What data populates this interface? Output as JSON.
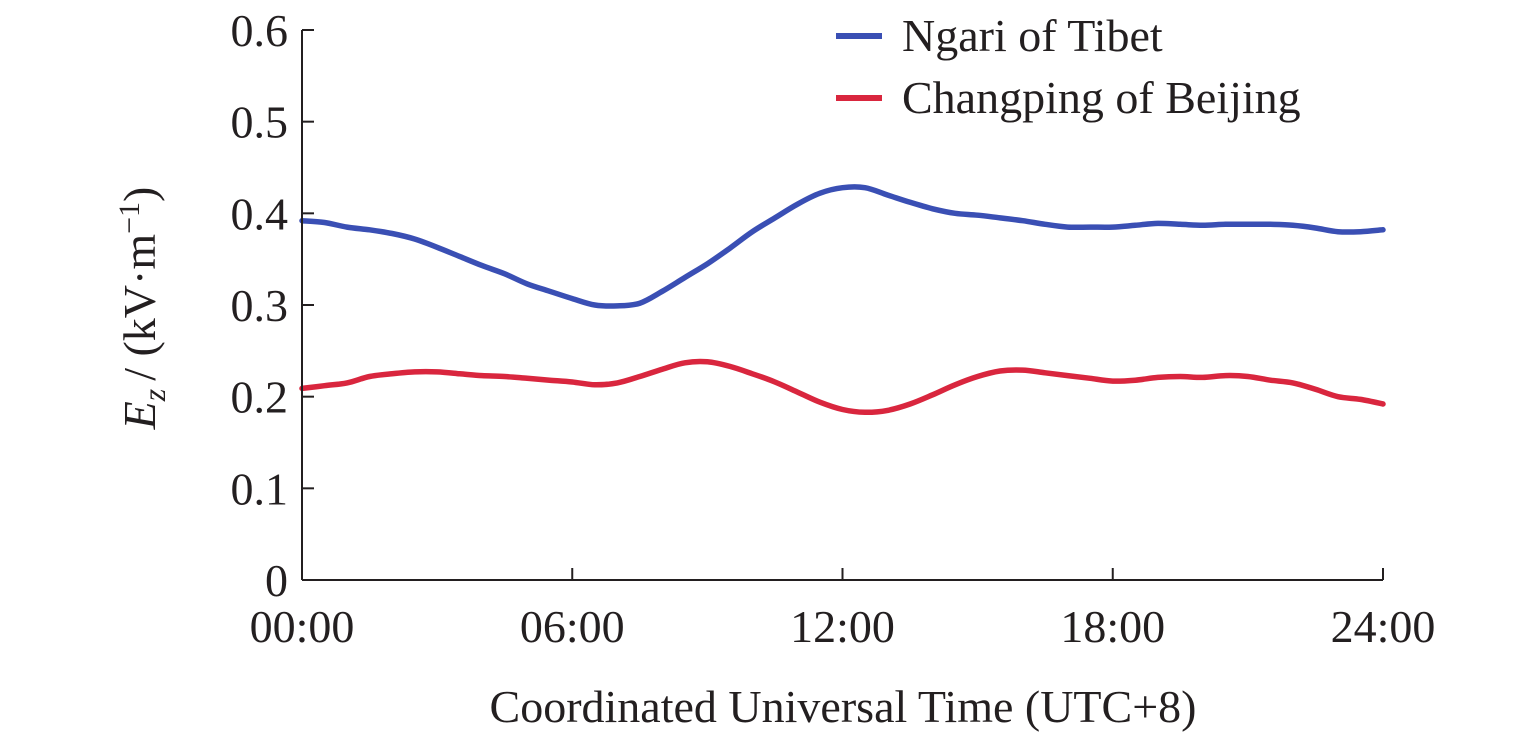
{
  "chart_data": {
    "type": "line",
    "xlabel": "Coordinated Universal Time (UTC+8)",
    "ylabel": {
      "symbol": "E",
      "subscript": "z",
      "unit_prefix": "/ (kV·m",
      "unit_exponent": "−1",
      "unit_suffix": ")"
    },
    "xlim": [
      0,
      24
    ],
    "ylim": [
      0,
      0.6
    ],
    "x_ticks": [
      {
        "value": 0,
        "label": "00:00"
      },
      {
        "value": 6,
        "label": "06:00"
      },
      {
        "value": 12,
        "label": "12:00"
      },
      {
        "value": 18,
        "label": "18:00"
      },
      {
        "value": 24,
        "label": "24:00"
      }
    ],
    "y_ticks": [
      {
        "value": 0,
        "label": "0"
      },
      {
        "value": 0.1,
        "label": "0.1"
      },
      {
        "value": 0.2,
        "label": "0.2"
      },
      {
        "value": 0.3,
        "label": "0.3"
      },
      {
        "value": 0.4,
        "label": "0.4"
      },
      {
        "value": 0.5,
        "label": "0.5"
      },
      {
        "value": 0.6,
        "label": "0.6"
      }
    ],
    "grid": false,
    "legend_position": "top-right",
    "series": [
      {
        "name": "Ngari of Tibet",
        "color": "#3a4fb4",
        "x": [
          0,
          0.5,
          1,
          1.5,
          2,
          2.5,
          3,
          3.5,
          4,
          4.5,
          5,
          5.5,
          6,
          6.5,
          7,
          7.5,
          8,
          8.5,
          9,
          9.5,
          10,
          10.5,
          11,
          11.5,
          12,
          12.5,
          13,
          13.5,
          14,
          14.5,
          15,
          15.5,
          16,
          16.5,
          17,
          17.5,
          18,
          18.5,
          19,
          19.5,
          20,
          20.5,
          21,
          21.5,
          22,
          22.5,
          23,
          23.5,
          24
        ],
        "y": [
          0.392,
          0.39,
          0.385,
          0.382,
          0.378,
          0.372,
          0.363,
          0.353,
          0.343,
          0.334,
          0.323,
          0.315,
          0.307,
          0.3,
          0.299,
          0.302,
          0.315,
          0.33,
          0.345,
          0.362,
          0.38,
          0.395,
          0.41,
          0.422,
          0.428,
          0.428,
          0.42,
          0.412,
          0.405,
          0.4,
          0.398,
          0.395,
          0.392,
          0.388,
          0.385,
          0.385,
          0.385,
          0.387,
          0.389,
          0.388,
          0.387,
          0.388,
          0.388,
          0.388,
          0.387,
          0.384,
          0.38,
          0.38,
          0.382
        ]
      },
      {
        "name": "Changping of Beijing",
        "color": "#d9263e",
        "x": [
          0,
          0.5,
          1,
          1.5,
          2,
          2.5,
          3,
          3.5,
          4,
          4.5,
          5,
          5.5,
          6,
          6.5,
          7,
          7.5,
          8,
          8.5,
          9,
          9.5,
          10,
          10.5,
          11,
          11.5,
          12,
          12.5,
          13,
          13.5,
          14,
          14.5,
          15,
          15.5,
          16,
          16.5,
          17,
          17.5,
          18,
          18.5,
          19,
          19.5,
          20,
          20.5,
          21,
          21.5,
          22,
          22.5,
          23,
          23.5,
          24
        ],
        "y": [
          0.209,
          0.212,
          0.215,
          0.222,
          0.225,
          0.227,
          0.227,
          0.225,
          0.223,
          0.222,
          0.22,
          0.218,
          0.216,
          0.213,
          0.215,
          0.222,
          0.23,
          0.237,
          0.238,
          0.233,
          0.225,
          0.216,
          0.205,
          0.194,
          0.186,
          0.183,
          0.185,
          0.192,
          0.202,
          0.213,
          0.222,
          0.228,
          0.229,
          0.226,
          0.223,
          0.22,
          0.217,
          0.218,
          0.221,
          0.222,
          0.221,
          0.223,
          0.222,
          0.218,
          0.215,
          0.208,
          0.2,
          0.197,
          0.192
        ]
      }
    ]
  }
}
